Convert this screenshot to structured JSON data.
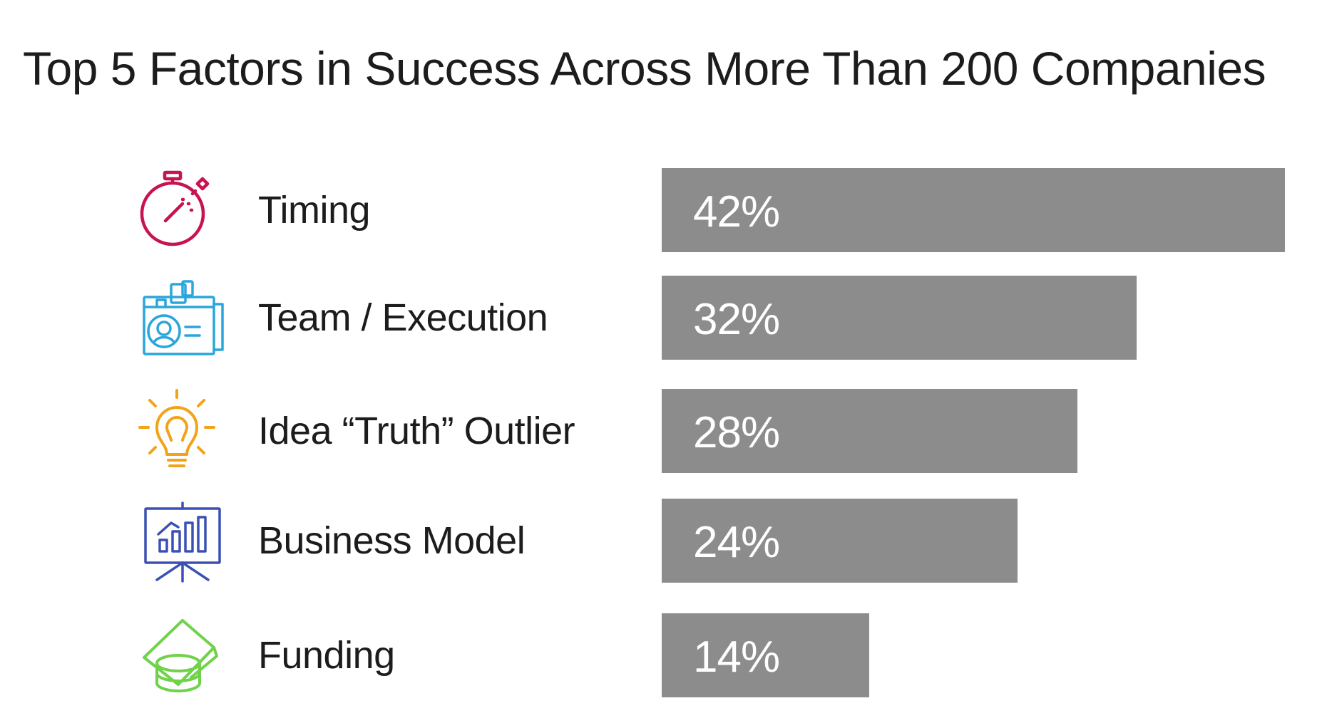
{
  "chart_data": {
    "type": "bar",
    "orientation": "horizontal",
    "title": "Top 5 Factors in Success Across More Than 200 Companies",
    "categories": [
      "Timing",
      "Team / Execution",
      "Idea “Truth” Outlier",
      "Business Model",
      "Funding"
    ],
    "values": [
      42,
      32,
      28,
      24,
      14
    ],
    "value_labels": [
      "42%",
      "32%",
      "28%",
      "24%",
      "14%"
    ],
    "icons": [
      "stopwatch-icon",
      "id-badge-icon",
      "lightbulb-icon",
      "presentation-chart-icon",
      "money-coins-icon"
    ],
    "icon_colors": [
      "#c8144e",
      "#2aa6dc",
      "#f2a31b",
      "#3a50b4",
      "#6fd24a"
    ],
    "bar_color": "#8c8c8c",
    "xlim": [
      0,
      42
    ],
    "xlabel": "",
    "ylabel": "",
    "grid": false
  }
}
